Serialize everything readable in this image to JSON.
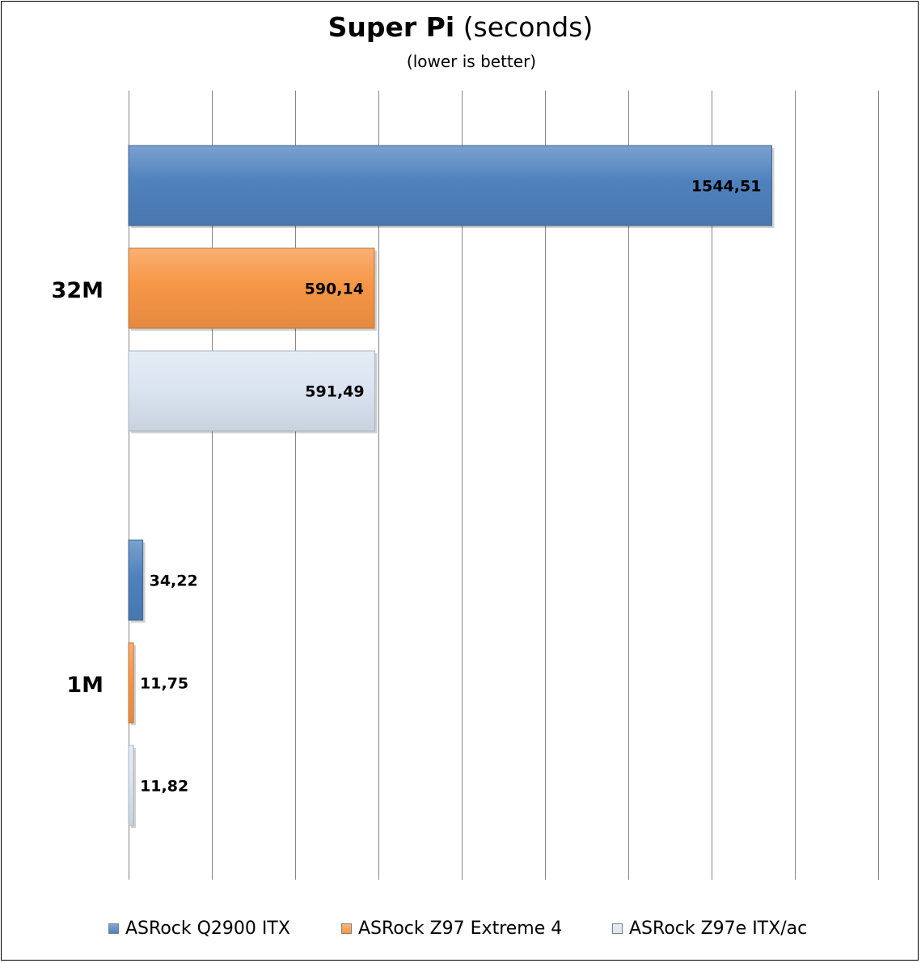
{
  "chart_data": {
    "type": "bar",
    "orientation": "horizontal",
    "title_bold": "Super Pi",
    "title_rest": "(seconds)",
    "subtitle": "(lower is better)",
    "categories": [
      "32M",
      "1M"
    ],
    "series": [
      {
        "name": "ASRock Q2900 ITX",
        "color": "#4f81bd",
        "values": [
          1544.51,
          34.22
        ],
        "labels": [
          "1544,51",
          "34,22"
        ]
      },
      {
        "name": "ASRock Z97 Extreme 4",
        "color": "#f79646",
        "values": [
          590.14,
          11.75
        ],
        "labels": [
          "590,14",
          "11,75"
        ]
      },
      {
        "name": "ASRock Z97e ITX/ac",
        "color": "#dbe5f1",
        "values": [
          591.49,
          11.82
        ],
        "labels": [
          "591,49",
          "11,82"
        ]
      }
    ],
    "xlim": [
      0,
      1800
    ],
    "grid": true,
    "legend_position": "bottom"
  }
}
